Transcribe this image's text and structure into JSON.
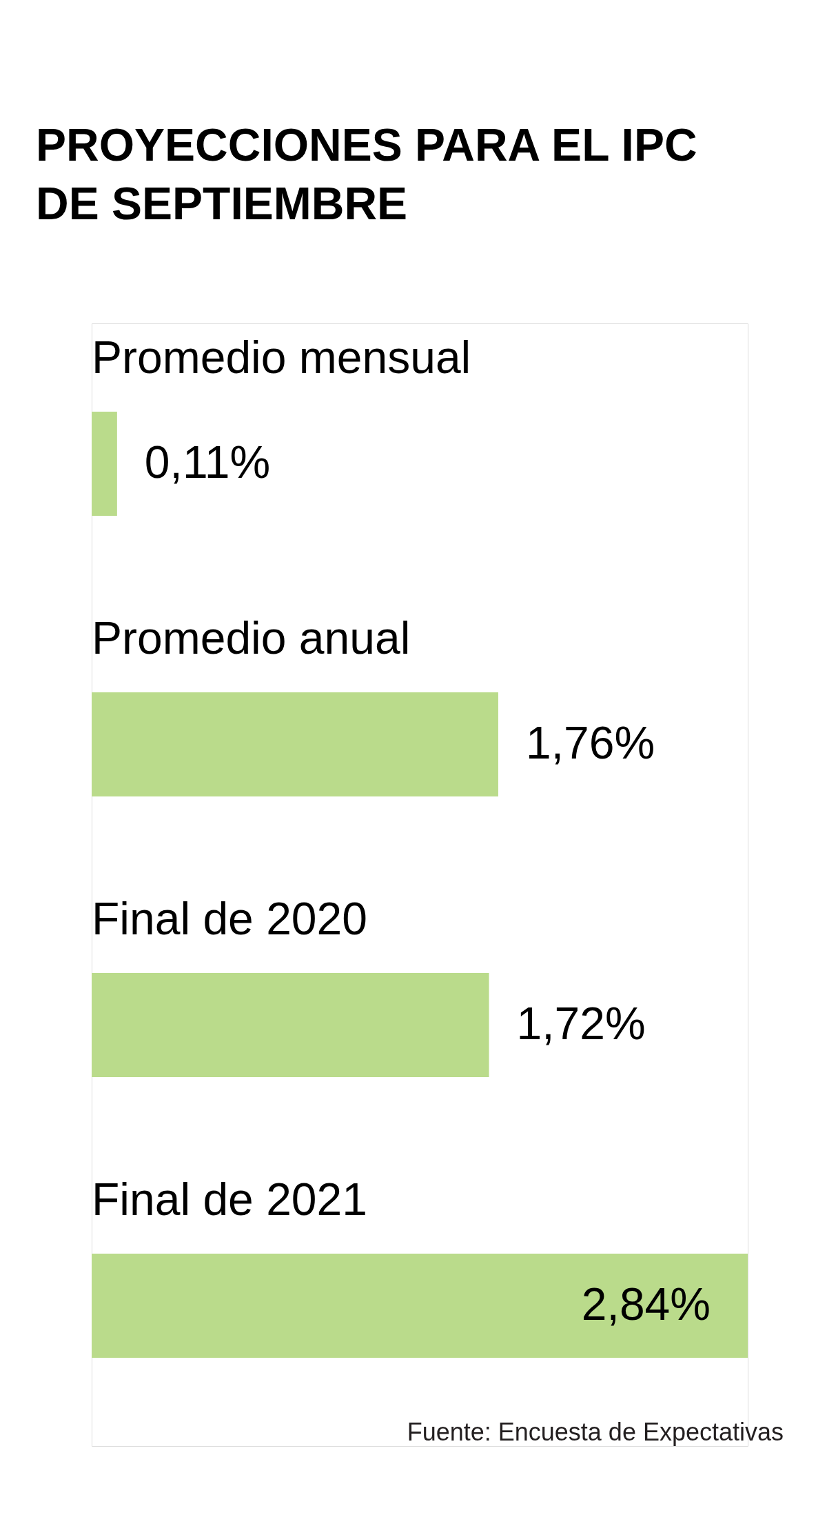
{
  "chart_data": {
    "type": "bar",
    "orientation": "horizontal",
    "title": "PROYECCIONES PARA EL IPC DE SEPTIEMBRE",
    "categories": [
      "Promedio mensual",
      "Promedio anual",
      "Final de 2020",
      "Final de 2021"
    ],
    "values": [
      0.11,
      1.76,
      1.72,
      2.84
    ],
    "value_labels": [
      "0,11%",
      "1,76%",
      "1,72%",
      "2,84%"
    ],
    "color": "#badb8b",
    "annotations": [
      "Fuente: Encuesta de Expectativas"
    ]
  }
}
